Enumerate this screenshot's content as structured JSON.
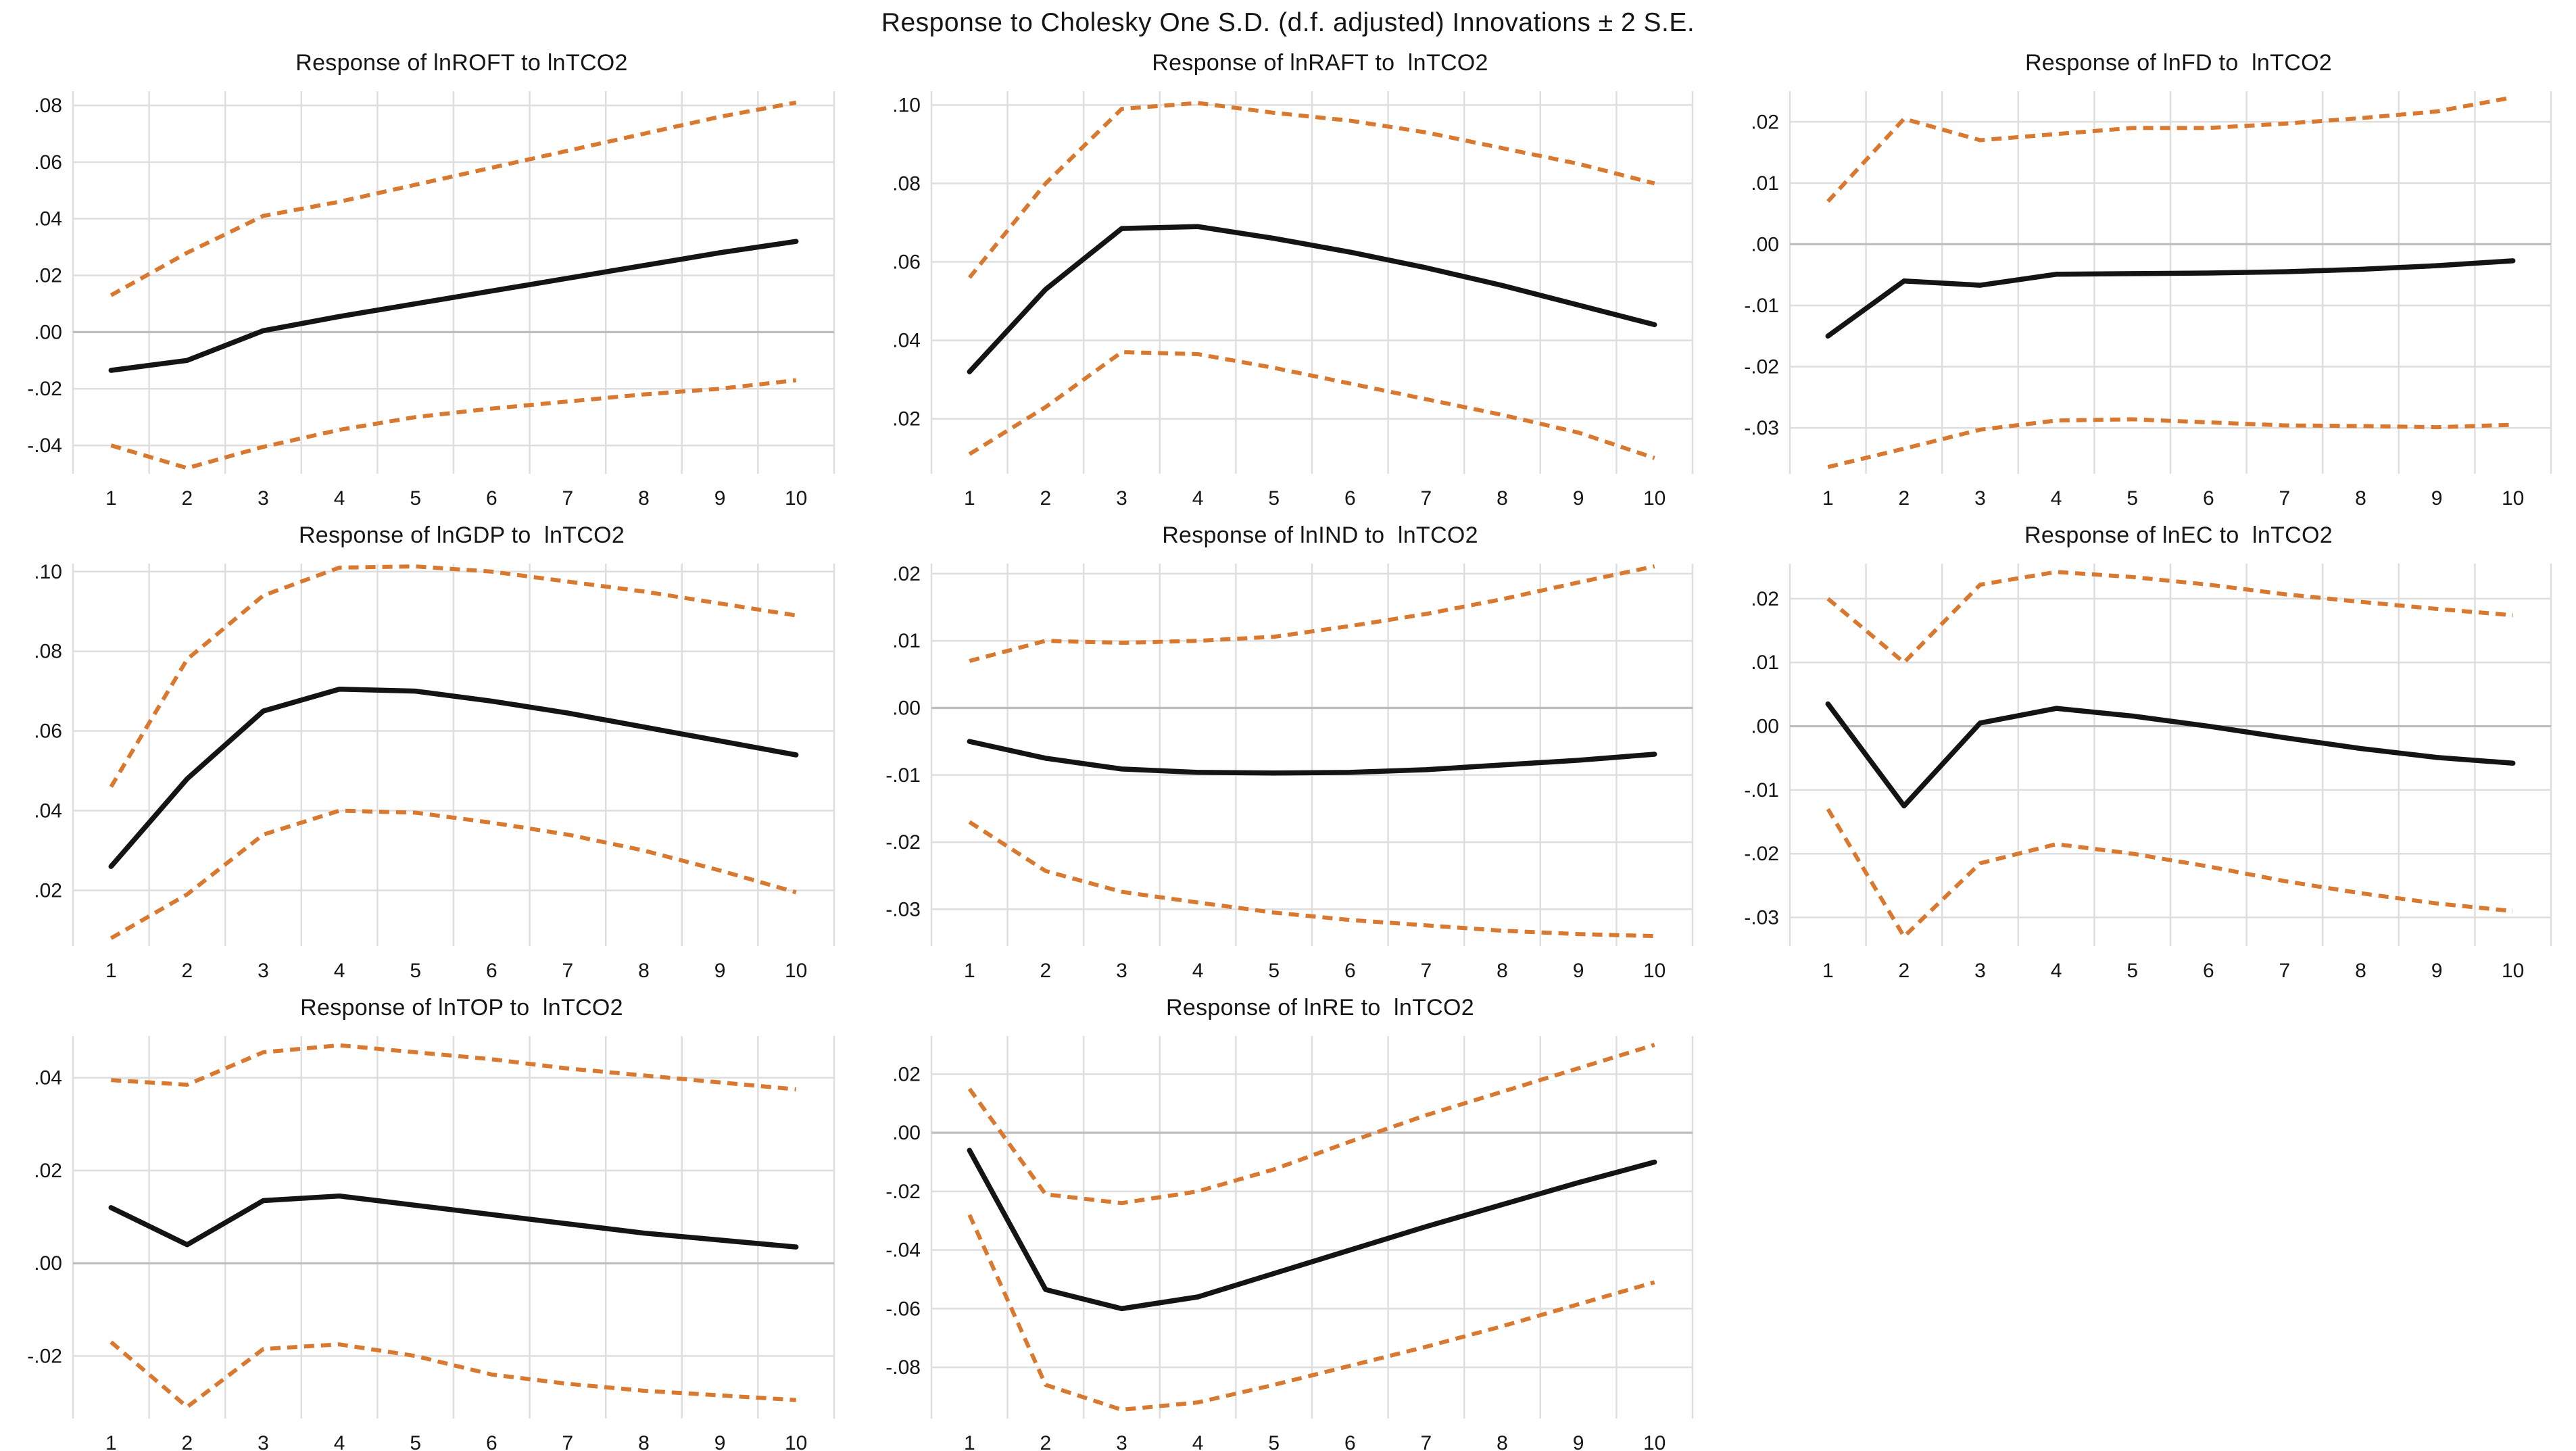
{
  "main_title": "Response to Cholesky One S.D. (d.f. adjusted) Innovations ± 2 S.E.",
  "style": {
    "line_color": "#141414",
    "band_color": "#d9782f",
    "grid_color": "#dedede",
    "zero_color": "#bdbdbd",
    "text_color": "#161616",
    "background": "#ffffff"
  },
  "chart_data": [
    {
      "type": "line",
      "name": "lnROFT",
      "title": "Response of lnROFT to lnTCO2",
      "xlabel": "",
      "ylabel": "",
      "legend": "none",
      "grid": true,
      "x": [
        1,
        2,
        3,
        4,
        5,
        6,
        7,
        8,
        9,
        10
      ],
      "ylim": [
        -0.05,
        0.085
      ],
      "yticks": [
        0.08,
        0.06,
        0.04,
        0.02,
        0,
        -0.02,
        -0.04
      ],
      "ytick_labels": [
        ".08",
        ".06",
        ".04",
        ".02",
        ".00",
        "-.02",
        "-.04"
      ],
      "series": [
        {
          "name": "response",
          "values": [
            -0.0135,
            -0.01,
            0.0005,
            0.0055,
            0.01,
            0.0145,
            0.019,
            0.0235,
            0.028,
            0.032
          ]
        },
        {
          "name": "upper_2se",
          "values": [
            0.013,
            0.028,
            0.041,
            0.046,
            0.052,
            0.058,
            0.064,
            0.07,
            0.076,
            0.081
          ]
        },
        {
          "name": "lower_2se",
          "values": [
            -0.04,
            -0.048,
            -0.0405,
            -0.0345,
            -0.03,
            -0.027,
            -0.0245,
            -0.022,
            -0.02,
            -0.017
          ]
        }
      ]
    },
    {
      "type": "line",
      "name": "lnRAFT",
      "title": "Response of lnRAFT to  lnTCO2",
      "xlabel": "",
      "ylabel": "",
      "legend": "none",
      "grid": true,
      "x": [
        1,
        2,
        3,
        4,
        5,
        6,
        7,
        8,
        9,
        10
      ],
      "ylim": [
        0.006,
        0.1035
      ],
      "yticks": [
        0.1,
        0.08,
        0.06,
        0.04,
        0.02
      ],
      "ytick_labels": [
        ".10",
        ".08",
        ".06",
        ".04",
        ".02"
      ],
      "series": [
        {
          "name": "response",
          "values": [
            0.032,
            0.053,
            0.0685,
            0.069,
            0.066,
            0.0625,
            0.0585,
            0.054,
            0.049,
            0.044
          ]
        },
        {
          "name": "upper_2se",
          "values": [
            0.056,
            0.08,
            0.099,
            0.1005,
            0.098,
            0.096,
            0.093,
            0.089,
            0.085,
            0.08
          ]
        },
        {
          "name": "lower_2se",
          "values": [
            0.011,
            0.023,
            0.037,
            0.0365,
            0.033,
            0.029,
            0.025,
            0.021,
            0.0165,
            0.01
          ]
        }
      ]
    },
    {
      "type": "line",
      "name": "lnFD",
      "title": "Response of lnFD to  lnTCO2",
      "xlabel": "",
      "ylabel": "",
      "legend": "none",
      "grid": true,
      "x": [
        1,
        2,
        3,
        4,
        5,
        6,
        7,
        8,
        9,
        10
      ],
      "ylim": [
        -0.0375,
        0.025
      ],
      "yticks": [
        0.02,
        0.01,
        0,
        -0.01,
        -0.02,
        -0.03
      ],
      "ytick_labels": [
        ".02",
        ".01",
        ".00",
        "-.01",
        "-.02",
        "-.03"
      ],
      "series": [
        {
          "name": "response",
          "values": [
            -0.015,
            -0.006,
            -0.0067,
            -0.0049,
            -0.0048,
            -0.0047,
            -0.0045,
            -0.0041,
            -0.0035,
            -0.0027
          ]
        },
        {
          "name": "upper_2se",
          "values": [
            0.007,
            0.0205,
            0.017,
            0.018,
            0.019,
            0.019,
            0.0197,
            0.0206,
            0.0217,
            0.024
          ]
        },
        {
          "name": "lower_2se",
          "values": [
            -0.0364,
            -0.0334,
            -0.0303,
            -0.0288,
            -0.0286,
            -0.0291,
            -0.0296,
            -0.0297,
            -0.0299,
            -0.0295
          ]
        }
      ]
    },
    {
      "type": "line",
      "name": "lnGDP",
      "title": "Response of lnGDP to  lnTCO2",
      "xlabel": "",
      "ylabel": "",
      "legend": "none",
      "grid": true,
      "x": [
        1,
        2,
        3,
        4,
        5,
        6,
        7,
        8,
        9,
        10
      ],
      "ylim": [
        0.006,
        0.102
      ],
      "yticks": [
        0.1,
        0.08,
        0.06,
        0.04,
        0.02
      ],
      "ytick_labels": [
        ".10",
        ".08",
        ".06",
        ".04",
        ".02"
      ],
      "series": [
        {
          "name": "response",
          "values": [
            0.026,
            0.048,
            0.065,
            0.0705,
            0.07,
            0.0675,
            0.0645,
            0.061,
            0.0575,
            0.054
          ]
        },
        {
          "name": "upper_2se",
          "values": [
            0.046,
            0.078,
            0.094,
            0.101,
            0.1013,
            0.1,
            0.0975,
            0.095,
            0.092,
            0.089
          ]
        },
        {
          "name": "lower_2se",
          "values": [
            0.008,
            0.019,
            0.034,
            0.04,
            0.0395,
            0.037,
            0.034,
            0.03,
            0.025,
            0.0195
          ]
        }
      ]
    },
    {
      "type": "line",
      "name": "lnIND",
      "title": "Response of lnIND to  lnTCO2",
      "xlabel": "",
      "ylabel": "",
      "legend": "none",
      "grid": true,
      "x": [
        1,
        2,
        3,
        4,
        5,
        6,
        7,
        8,
        9,
        10
      ],
      "ylim": [
        -0.0355,
        0.0215
      ],
      "yticks": [
        0.02,
        0.01,
        0,
        -0.01,
        -0.02,
        -0.03
      ],
      "ytick_labels": [
        ".02",
        ".01",
        ".00",
        "-.01",
        "-.02",
        "-.03"
      ],
      "series": [
        {
          "name": "response",
          "values": [
            -0.005,
            -0.0075,
            -0.0091,
            -0.0096,
            -0.0097,
            -0.0096,
            -0.0092,
            -0.0085,
            -0.0078,
            -0.0069
          ]
        },
        {
          "name": "upper_2se",
          "values": [
            0.007,
            0.01,
            0.0097,
            0.01,
            0.0106,
            0.0122,
            0.014,
            0.0162,
            0.0187,
            0.0211
          ]
        },
        {
          "name": "lower_2se",
          "values": [
            -0.017,
            -0.0243,
            -0.0274,
            -0.029,
            -0.0305,
            -0.0316,
            -0.0324,
            -0.0332,
            -0.0337,
            -0.034
          ]
        }
      ]
    },
    {
      "type": "line",
      "name": "lnEC",
      "title": "Response of lnEC to  lnTCO2",
      "xlabel": "",
      "ylabel": "",
      "legend": "none",
      "grid": true,
      "x": [
        1,
        2,
        3,
        4,
        5,
        6,
        7,
        8,
        9,
        10
      ],
      "ylim": [
        -0.0345,
        0.0255
      ],
      "yticks": [
        0.02,
        0.01,
        0,
        -0.01,
        -0.02,
        -0.03
      ],
      "ytick_labels": [
        ".02",
        ".01",
        ".00",
        "-.01",
        "-.02",
        "-.03"
      ],
      "series": [
        {
          "name": "response",
          "values": [
            0.0035,
            -0.0125,
            0.0005,
            0.0028,
            0.0016,
            0.0,
            -0.0018,
            -0.0035,
            -0.0049,
            -0.0058
          ]
        },
        {
          "name": "upper_2se",
          "values": [
            0.02,
            0.01,
            0.0222,
            0.0242,
            0.0234,
            0.0222,
            0.0207,
            0.0195,
            0.0184,
            0.0174
          ]
        },
        {
          "name": "lower_2se",
          "values": [
            -0.013,
            -0.033,
            -0.0215,
            -0.0185,
            -0.02,
            -0.022,
            -0.0243,
            -0.0262,
            -0.0278,
            -0.029
          ]
        }
      ]
    },
    {
      "type": "line",
      "name": "lnTOP",
      "title": "Response of lnTOP to  lnTCO2",
      "xlabel": "",
      "ylabel": "",
      "legend": "none",
      "grid": true,
      "x": [
        1,
        2,
        3,
        4,
        5,
        6,
        7,
        8,
        9,
        10
      ],
      "ylim": [
        -0.0335,
        0.049
      ],
      "yticks": [
        0.04,
        0.02,
        0,
        -0.02
      ],
      "ytick_labels": [
        ".04",
        ".02",
        ".00",
        "-.02"
      ],
      "series": [
        {
          "name": "response",
          "values": [
            0.012,
            0.004,
            0.0135,
            0.0145,
            0.0125,
            0.0105,
            0.0085,
            0.0065,
            0.005,
            0.0035
          ]
        },
        {
          "name": "upper_2se",
          "values": [
            0.0395,
            0.0385,
            0.0455,
            0.047,
            0.0455,
            0.044,
            0.042,
            0.0405,
            0.039,
            0.0375
          ]
        },
        {
          "name": "lower_2se",
          "values": [
            -0.017,
            -0.031,
            -0.0185,
            -0.0175,
            -0.02,
            -0.024,
            -0.026,
            -0.0275,
            -0.0285,
            -0.0295
          ]
        }
      ]
    },
    {
      "type": "line",
      "name": "lnRE",
      "title": "Response of lnRE to  lnTCO2",
      "xlabel": "",
      "ylabel": "",
      "legend": "none",
      "grid": true,
      "x": [
        1,
        2,
        3,
        4,
        5,
        6,
        7,
        8,
        9,
        10
      ],
      "ylim": [
        -0.0975,
        0.033
      ],
      "yticks": [
        0.02,
        0,
        -0.02,
        -0.04,
        -0.06,
        -0.08
      ],
      "ytick_labels": [
        ".02",
        ".00",
        "-.02",
        "-.04",
        "-.06",
        "-.08"
      ],
      "series": [
        {
          "name": "response",
          "values": [
            -0.006,
            -0.0535,
            -0.06,
            -0.056,
            -0.048,
            -0.04,
            -0.032,
            -0.0245,
            -0.017,
            -0.01
          ]
        },
        {
          "name": "upper_2se",
          "values": [
            0.015,
            -0.021,
            -0.024,
            -0.02,
            -0.0125,
            -0.003,
            0.006,
            0.014,
            0.022,
            0.03
          ]
        },
        {
          "name": "lower_2se",
          "values": [
            -0.028,
            -0.086,
            -0.0945,
            -0.092,
            -0.086,
            -0.0795,
            -0.073,
            -0.066,
            -0.0585,
            -0.051
          ]
        }
      ]
    }
  ]
}
